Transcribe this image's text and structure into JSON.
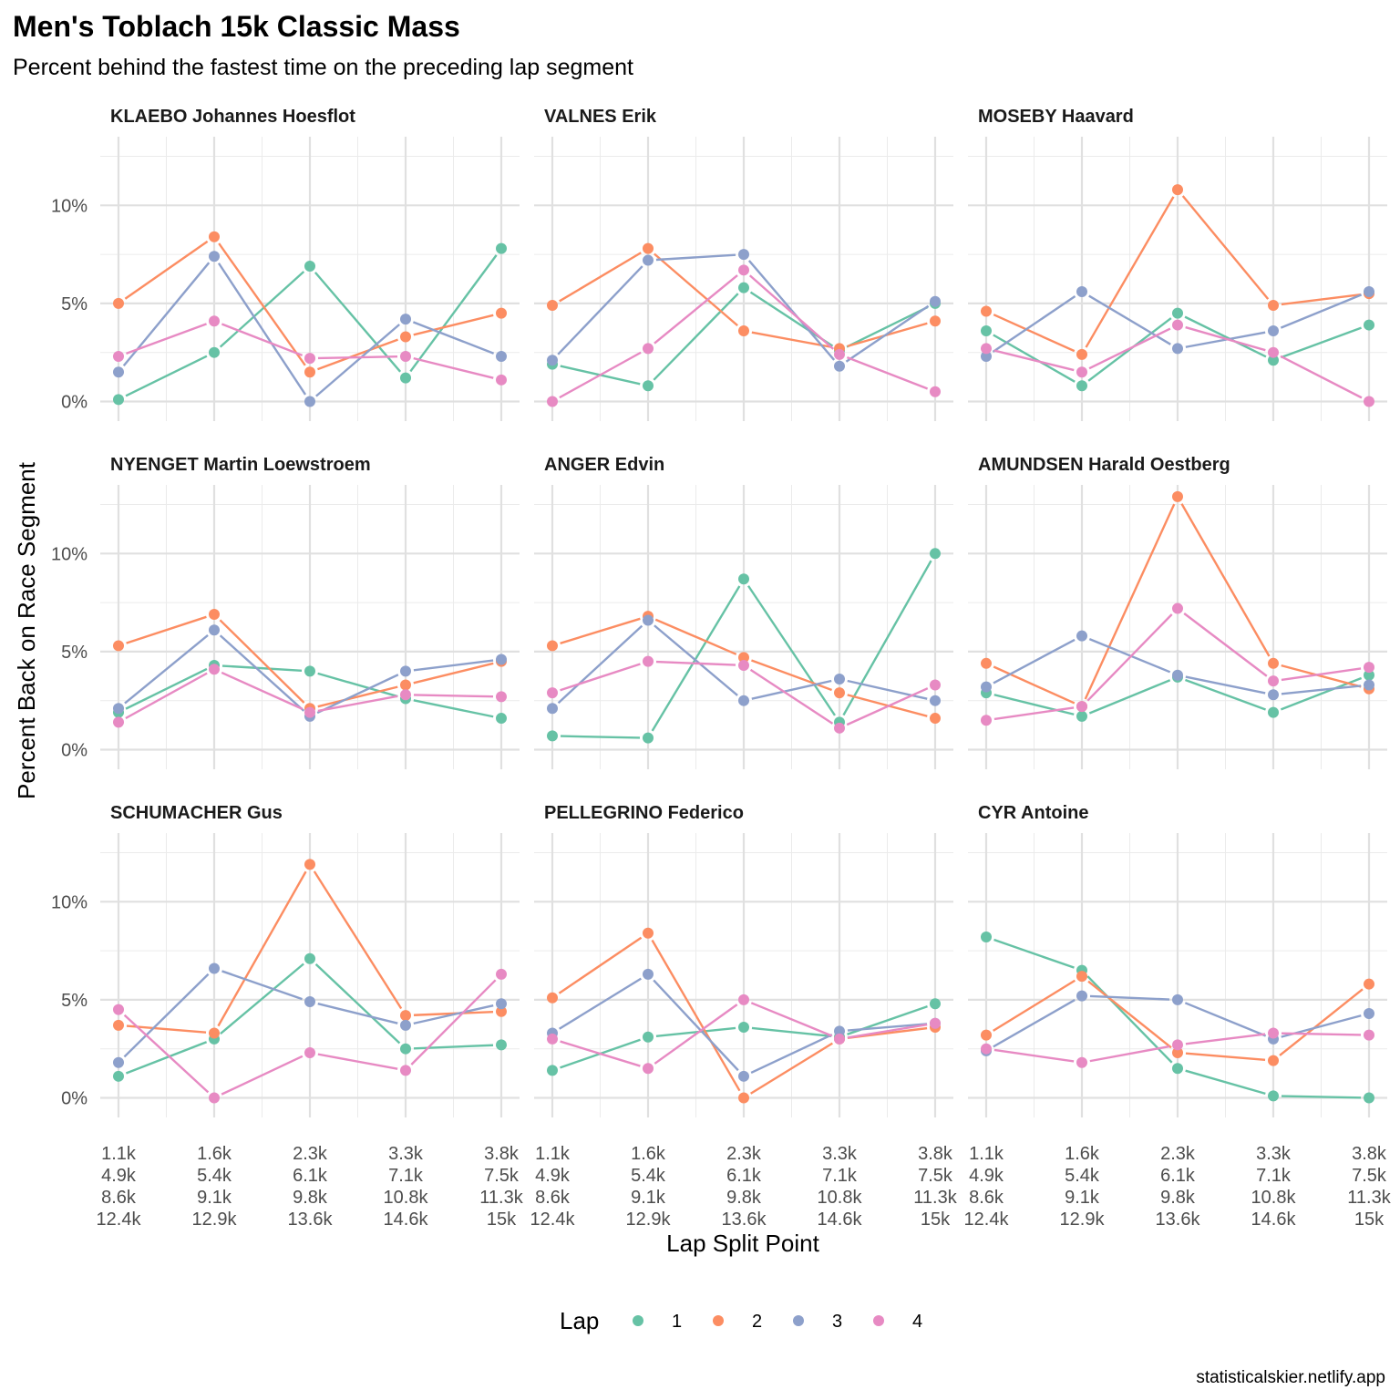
{
  "chart_data": {
    "type": "line",
    "title": "Men's Toblach 15k Classic Mass",
    "subtitle": "Percent behind the fastest time on the preceding lap segment",
    "xlabel": "Lap Split Point",
    "ylabel": "Percent Back on Race Segment",
    "caption": "statisticalskier.netlify.app",
    "grid": true,
    "legend": {
      "title": "Lap",
      "position": "bottom",
      "entries": [
        "1",
        "2",
        "3",
        "4"
      ]
    },
    "x_tick_labels": [
      [
        "1.1k",
        "4.9k",
        "8.6k",
        "12.4k"
      ],
      [
        "1.6k",
        "5.4k",
        "9.1k",
        "12.9k"
      ],
      [
        "2.3k",
        "6.1k",
        "9.8k",
        "13.6k"
      ],
      [
        "3.3k",
        "7.1k",
        "10.8k",
        "14.6k"
      ],
      [
        "3.8k",
        "7.5k",
        "11.3k",
        "15k"
      ]
    ],
    "y_ticks": [
      0,
      5,
      10
    ],
    "y_tick_labels": [
      "0%",
      "5%",
      "10%"
    ],
    "ylim": [
      -1,
      13.5
    ],
    "colors": {
      "1": "#66c2a5",
      "2": "#fc8d62",
      "3": "#8da0cb",
      "4": "#e78ac3"
    },
    "facets": [
      {
        "name": "KLAEBO Johannes Hoesflot",
        "series": [
          {
            "lap": "1",
            "values": [
              0.1,
              2.5,
              6.9,
              1.2,
              7.8
            ]
          },
          {
            "lap": "2",
            "values": [
              5.0,
              8.4,
              1.5,
              3.3,
              4.5
            ]
          },
          {
            "lap": "3",
            "values": [
              1.5,
              7.4,
              0.0,
              4.2,
              2.3
            ]
          },
          {
            "lap": "4",
            "values": [
              2.3,
              4.1,
              2.2,
              2.3,
              1.1
            ]
          }
        ]
      },
      {
        "name": "VALNES Erik",
        "series": [
          {
            "lap": "1",
            "values": [
              1.9,
              0.8,
              5.8,
              2.6,
              5.0
            ]
          },
          {
            "lap": "2",
            "values": [
              4.9,
              7.8,
              3.6,
              2.7,
              4.1
            ]
          },
          {
            "lap": "3",
            "values": [
              2.1,
              7.2,
              7.5,
              1.8,
              5.1
            ]
          },
          {
            "lap": "4",
            "values": [
              0.0,
              2.7,
              6.7,
              2.4,
              0.5
            ]
          }
        ]
      },
      {
        "name": "MOSEBY Haavard",
        "series": [
          {
            "lap": "1",
            "values": [
              3.6,
              0.8,
              4.5,
              2.1,
              3.9
            ]
          },
          {
            "lap": "2",
            "values": [
              4.6,
              2.4,
              10.8,
              4.9,
              5.5
            ]
          },
          {
            "lap": "3",
            "values": [
              2.3,
              5.6,
              2.7,
              3.6,
              5.6
            ]
          },
          {
            "lap": "4",
            "values": [
              2.7,
              1.5,
              3.9,
              2.5,
              0.0
            ]
          }
        ]
      },
      {
        "name": "NYENGET Martin Loewstroem",
        "series": [
          {
            "lap": "1",
            "values": [
              1.9,
              4.3,
              4.0,
              2.6,
              1.6
            ]
          },
          {
            "lap": "2",
            "values": [
              5.3,
              6.9,
              2.1,
              3.3,
              4.5
            ]
          },
          {
            "lap": "3",
            "values": [
              2.1,
              6.1,
              1.7,
              4.0,
              4.6
            ]
          },
          {
            "lap": "4",
            "values": [
              1.4,
              4.1,
              1.9,
              2.8,
              2.7
            ]
          }
        ]
      },
      {
        "name": "ANGER Edvin",
        "series": [
          {
            "lap": "1",
            "values": [
              0.7,
              0.6,
              8.7,
              1.4,
              10.0
            ]
          },
          {
            "lap": "2",
            "values": [
              5.3,
              6.8,
              4.7,
              2.9,
              1.6
            ]
          },
          {
            "lap": "3",
            "values": [
              2.1,
              6.6,
              2.5,
              3.6,
              2.5
            ]
          },
          {
            "lap": "4",
            "values": [
              2.9,
              4.5,
              4.3,
              1.1,
              3.3
            ]
          }
        ]
      },
      {
        "name": "AMUNDSEN Harald Oestberg",
        "series": [
          {
            "lap": "1",
            "values": [
              2.9,
              1.7,
              3.7,
              1.9,
              3.8
            ]
          },
          {
            "lap": "2",
            "values": [
              4.4,
              2.2,
              12.9,
              4.4,
              3.1
            ]
          },
          {
            "lap": "3",
            "values": [
              3.2,
              5.8,
              3.8,
              2.8,
              3.3
            ]
          },
          {
            "lap": "4",
            "values": [
              1.5,
              2.2,
              7.2,
              3.5,
              4.2
            ]
          }
        ]
      },
      {
        "name": "SCHUMACHER Gus",
        "series": [
          {
            "lap": "1",
            "values": [
              1.1,
              3.0,
              7.1,
              2.5,
              2.7
            ]
          },
          {
            "lap": "2",
            "values": [
              3.7,
              3.3,
              11.9,
              4.2,
              4.4
            ]
          },
          {
            "lap": "3",
            "values": [
              1.8,
              6.6,
              4.9,
              3.7,
              4.8
            ]
          },
          {
            "lap": "4",
            "values": [
              4.5,
              0.0,
              2.3,
              1.4,
              6.3
            ]
          }
        ]
      },
      {
        "name": "PELLEGRINO Federico",
        "series": [
          {
            "lap": "1",
            "values": [
              1.4,
              3.1,
              3.6,
              3.1,
              4.8
            ]
          },
          {
            "lap": "2",
            "values": [
              5.1,
              8.4,
              0.0,
              3.0,
              3.6
            ]
          },
          {
            "lap": "3",
            "values": [
              3.3,
              6.3,
              1.1,
              3.4,
              3.8
            ]
          },
          {
            "lap": "4",
            "values": [
              3.0,
              1.5,
              5.0,
              3.0,
              3.8
            ]
          }
        ]
      },
      {
        "name": "CYR Antoine",
        "series": [
          {
            "lap": "1",
            "values": [
              8.2,
              6.5,
              1.5,
              0.1,
              0.0
            ]
          },
          {
            "lap": "2",
            "values": [
              3.2,
              6.2,
              2.3,
              1.9,
              5.8
            ]
          },
          {
            "lap": "3",
            "values": [
              2.4,
              5.2,
              5.0,
              3.0,
              4.3
            ]
          },
          {
            "lap": "4",
            "values": [
              2.5,
              1.8,
              2.7,
              3.3,
              3.2
            ]
          }
        ]
      }
    ]
  }
}
